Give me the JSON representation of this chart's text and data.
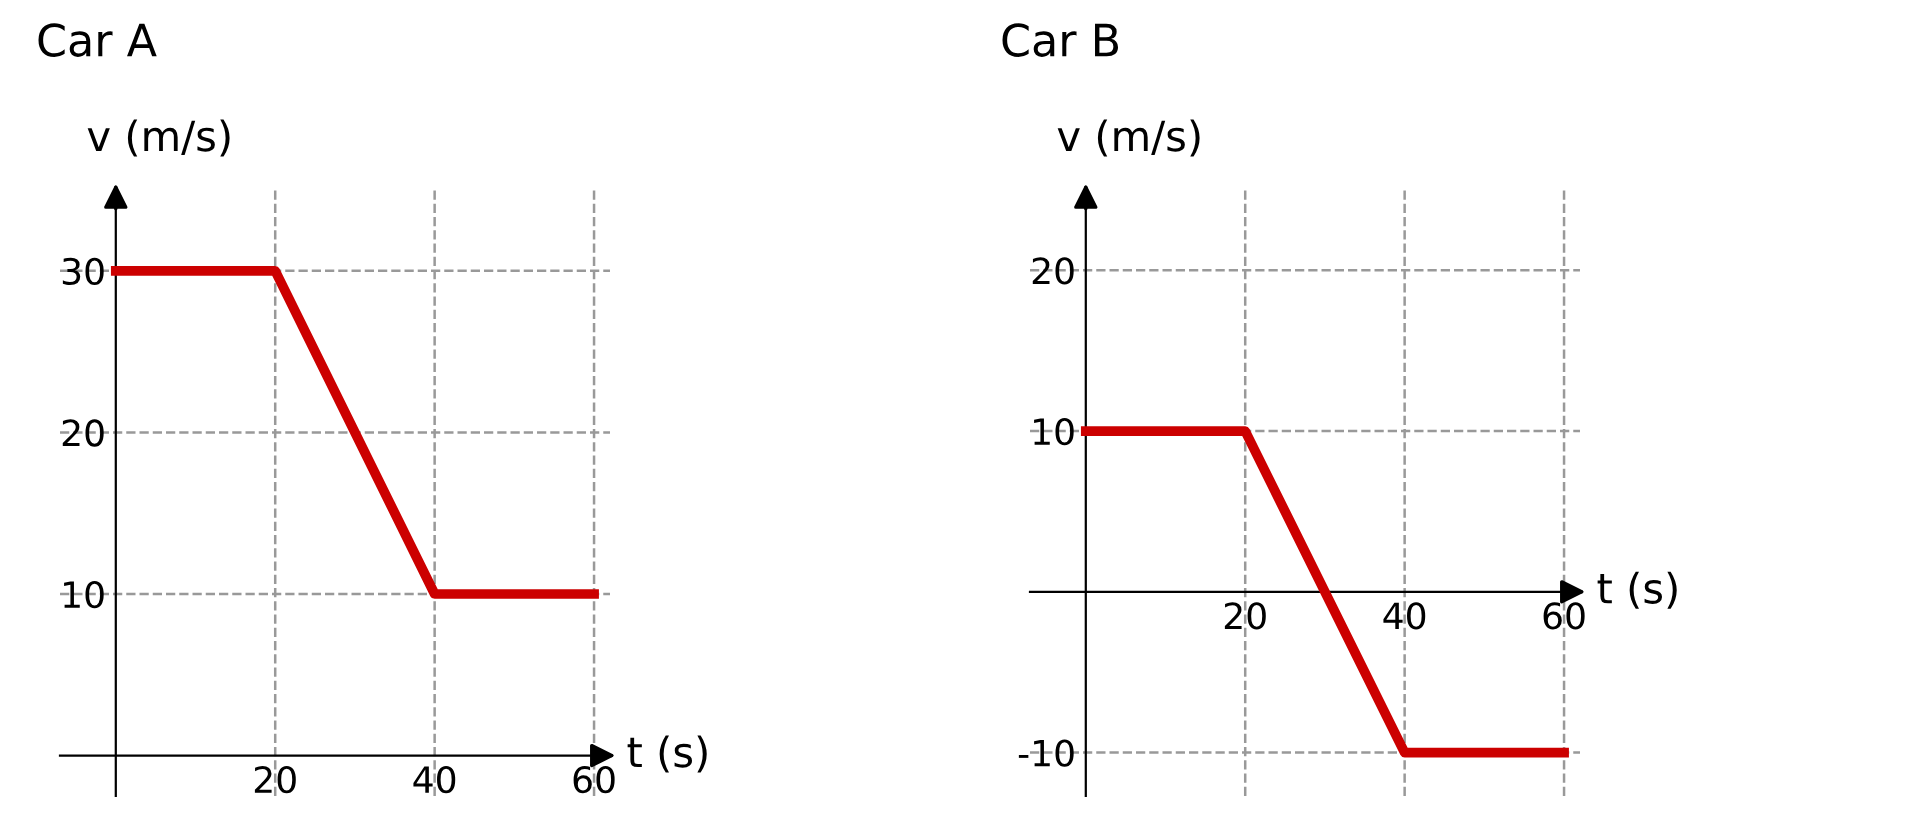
{
  "chart_data": [
    {
      "type": "line",
      "title": "Car A",
      "xlabel": "t (s)",
      "ylabel": "v (m/s)",
      "x": [
        0,
        20,
        40,
        60
      ],
      "series": [
        {
          "color": "#cc0000",
          "values": [
            30,
            30,
            10,
            10
          ]
        }
      ],
      "xlim": [
        -7,
        62
      ],
      "ylim": [
        -2.5,
        35
      ],
      "xticks": [
        20,
        40,
        60
      ],
      "yticks": [
        10,
        20,
        30
      ],
      "grid": true,
      "marker": "none",
      "line_style": "solid"
    },
    {
      "type": "line",
      "title": "Car B",
      "xlabel": "t (s)",
      "ylabel": "v (m/s)",
      "x": [
        0,
        20,
        40,
        60
      ],
      "series": [
        {
          "color": "#cc0000",
          "values": [
            10,
            10,
            -10,
            -10
          ]
        }
      ],
      "xlim": [
        -7,
        62
      ],
      "ylim": [
        -12.7,
        25
      ],
      "xticks": [
        20,
        40,
        60
      ],
      "yticks": [
        -10,
        10,
        20
      ],
      "grid": true,
      "marker": "none",
      "line_style": "solid"
    }
  ]
}
